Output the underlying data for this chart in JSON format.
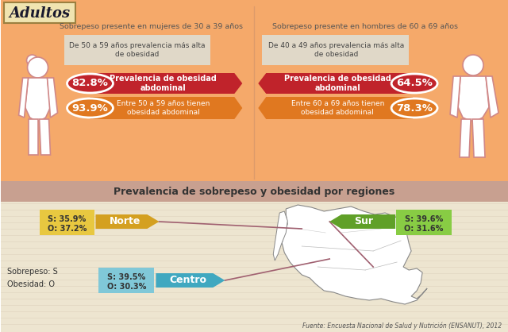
{
  "title": "Adultos",
  "bg_top": "#F5A96A",
  "bg_bottom": "#EDE5D0",
  "bg_header_band": "#C8A090",
  "left_subtitle": "Sobrepeso presente en mujeres de 30 a 39 años",
  "right_subtitle": "Sobrepeso presente en hombres de 60 a 69 años",
  "left_note": "De 50 a 59 años prevalencia más alta\nde obesidad",
  "right_note": "De 40 a 49 años prevalencia más alta\nde obesidad",
  "left_pct1": "82.8%",
  "left_pct2": "93.9%",
  "right_pct1": "64.5%",
  "right_pct2": "78.3%",
  "left_label1": "Prevalencia de obesidad\nabdominal",
  "left_label2": "Entre 50 a 59 años tienen\nobesidad abdominal",
  "right_label1": "Prevalencia de obesidad\nabdominal",
  "right_label2": "Entre 60 a 69 años tienen\nobesidad abdominal",
  "red_color": "#C0232B",
  "orange_color": "#E07820",
  "region_title": "Prevalencia de sobrepeso y obesidad por regiones",
  "norte_s": "S: 35.9%",
  "norte_o": "O: 37.2%",
  "centro_s": "S: 39.5%",
  "centro_o": "O: 30.3%",
  "sur_s": "S: 39.6%",
  "sur_o": "O: 31.6%",
  "norte_label": "Norte",
  "centro_label": "Centro",
  "sur_label": "Sur",
  "norte_box_color": "#E8C840",
  "norte_arrow_color": "#D4A020",
  "centro_box_color": "#80C8D8",
  "centro_arrow_color": "#40A8C0",
  "sur_box_color": "#88CC44",
  "sur_arrow_color": "#60A028",
  "legend_text": "Sobrepeso: S\nObesidad: O",
  "source_text": "Fuente: Encuesta Nacional de Salud y Nutrición (ENSANUT), 2012",
  "note_box_color": "#E0D8C8",
  "title_box_color": "#F0E4B0",
  "title_box_edge": "#9B8040",
  "divider_color": "#D4956A",
  "line_color": "#A06070"
}
